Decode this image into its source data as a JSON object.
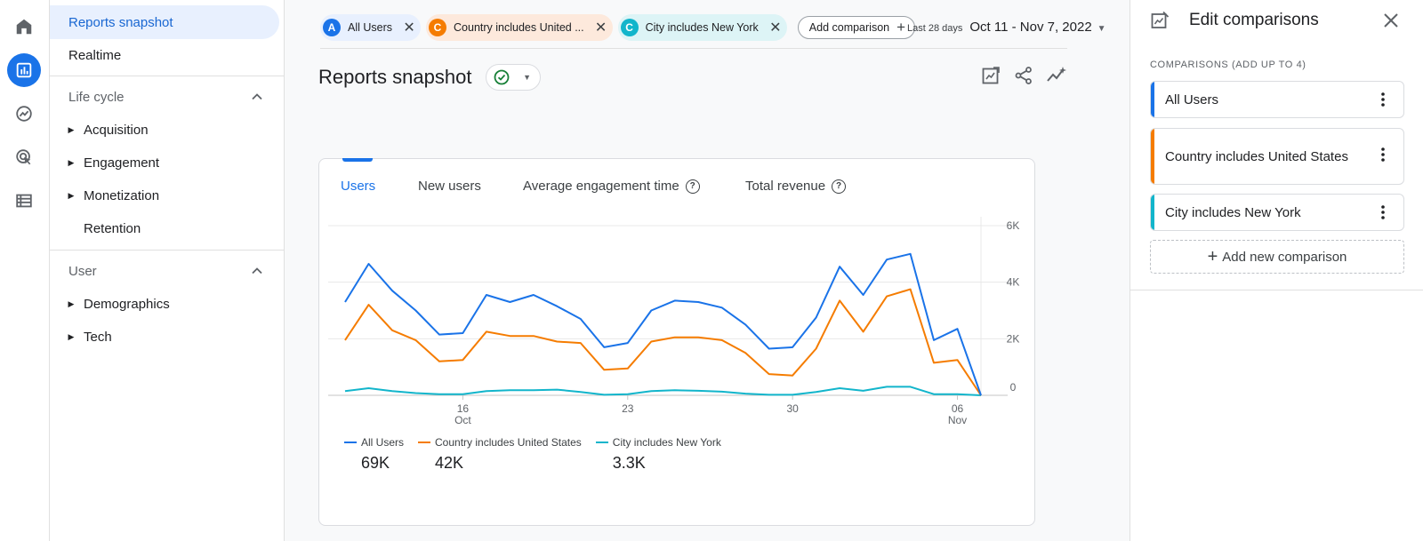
{
  "rail": {
    "items": [
      {
        "icon": "home-icon"
      },
      {
        "icon": "reports-icon",
        "active": true
      },
      {
        "icon": "explore-icon"
      },
      {
        "icon": "advertising-icon"
      },
      {
        "icon": "configure-icon"
      }
    ]
  },
  "nav": {
    "reports_snapshot": "Reports snapshot",
    "realtime": "Realtime",
    "lifecycle": "Life cycle",
    "acquisition": "Acquisition",
    "engagement": "Engagement",
    "monetization": "Monetization",
    "retention": "Retention",
    "user": "User",
    "demographics": "Demographics",
    "tech": "Tech"
  },
  "chips": [
    {
      "badge": "A",
      "label": "All Users",
      "color": "#1a73e8"
    },
    {
      "badge": "C",
      "label": "Country includes United ...",
      "color": "#f57c00"
    },
    {
      "badge": "C",
      "label": "City includes New York",
      "color": "#12b5cb"
    }
  ],
  "add_comparison": "Add comparison",
  "date": {
    "label": "Last 28 days",
    "range": "Oct 11 - Nov 7, 2022"
  },
  "page_title": "Reports snapshot",
  "tabs": {
    "users": "Users",
    "new_users": "New users",
    "avg_engagement": "Average engagement time",
    "total_revenue": "Total revenue"
  },
  "legend": [
    {
      "name": "All Users",
      "value": "69K",
      "color": "#1a73e8"
    },
    {
      "name": "Country includes United States",
      "value": "42K",
      "color": "#f57c00"
    },
    {
      "name": "City includes New York",
      "value": "3.3K",
      "color": "#12b5cb"
    }
  ],
  "chart_data": {
    "type": "line",
    "x_ticks": [
      {
        "day": "16",
        "month": "Oct",
        "index": 5
      },
      {
        "day": "23",
        "month": "",
        "index": 12
      },
      {
        "day": "30",
        "month": "",
        "index": 19
      },
      {
        "day": "06",
        "month": "Nov",
        "index": 26
      }
    ],
    "y_ticks": [
      "0",
      "2K",
      "4K",
      "6K"
    ],
    "ylim": [
      0,
      6000
    ],
    "grid": true,
    "series": [
      {
        "name": "All Users",
        "color": "#1a73e8",
        "values": [
          3300,
          4650,
          3700,
          3000,
          2150,
          2200,
          3550,
          3300,
          3550,
          3150,
          2700,
          1700,
          1850,
          3000,
          3350,
          3300,
          3100,
          2500,
          1650,
          1700,
          2750,
          4550,
          3550,
          4800,
          5000,
          1950,
          2350,
          0
        ]
      },
      {
        "name": "Country includes United States",
        "color": "#f57c00",
        "values": [
          1950,
          3200,
          2300,
          1950,
          1200,
          1250,
          2250,
          2100,
          2100,
          1900,
          1850,
          900,
          950,
          1900,
          2050,
          2050,
          1950,
          1500,
          750,
          700,
          1650,
          3350,
          2250,
          3500,
          3750,
          1150,
          1250,
          0
        ]
      },
      {
        "name": "City includes New York",
        "color": "#12b5cb",
        "values": [
          150,
          250,
          150,
          80,
          40,
          40,
          150,
          180,
          180,
          200,
          120,
          20,
          40,
          150,
          180,
          160,
          130,
          60,
          20,
          20,
          120,
          250,
          160,
          300,
          300,
          40,
          40,
          0
        ]
      }
    ]
  },
  "panel": {
    "title": "Edit comparisons",
    "subtitle": "COMPARISONS (ADD UP TO 4)",
    "comparisons": [
      {
        "label": "All Users",
        "color": "#1a73e8"
      },
      {
        "label": "Country includes United States",
        "color": "#f57c00"
      },
      {
        "label": "City includes New York",
        "color": "#12b5cb"
      }
    ],
    "add_new": "Add new comparison"
  }
}
